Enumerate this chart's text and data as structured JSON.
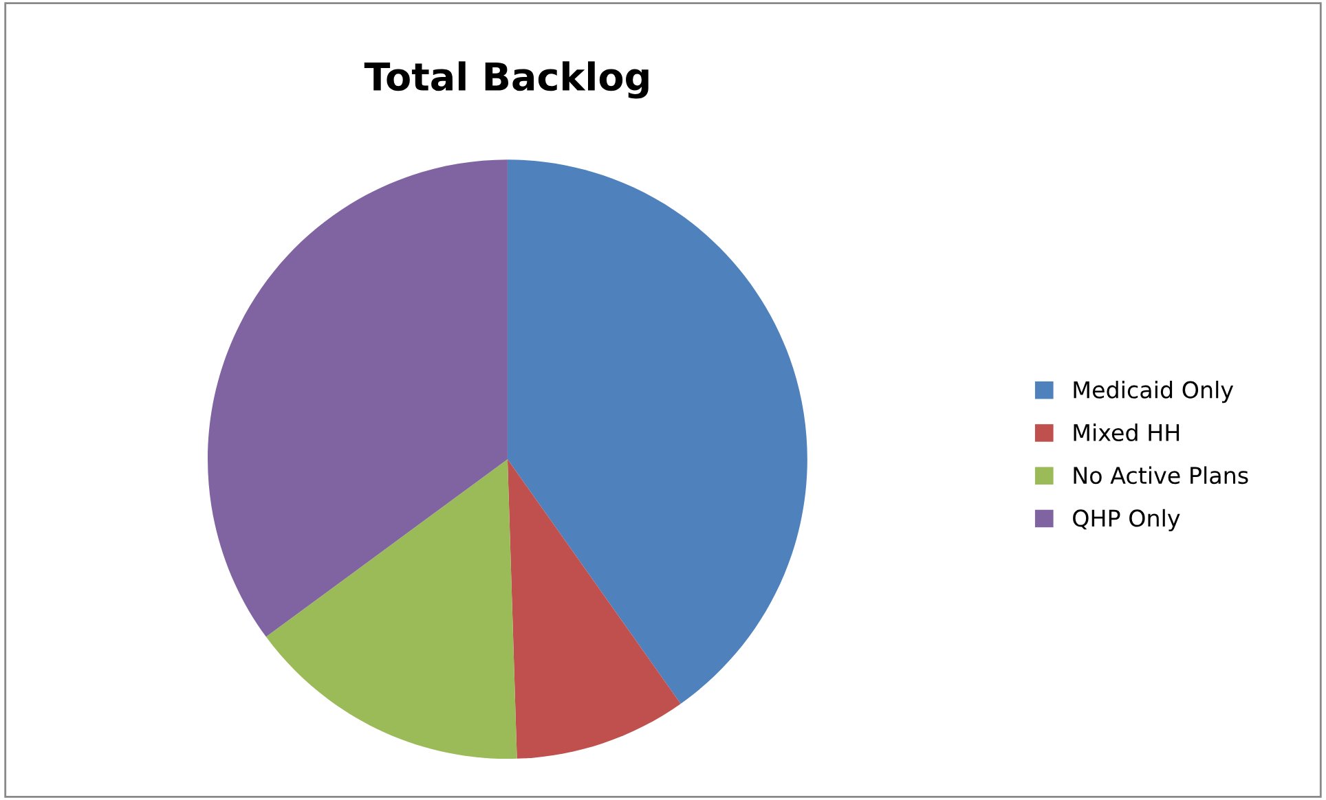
{
  "chart_data": {
    "type": "pie",
    "title": "Total Backlog",
    "categories": [
      "Medicaid Only",
      "Mixed HH",
      "No Active Plans",
      "QHP Only"
    ],
    "values": [
      40.2,
      9.3,
      15.4,
      35.1
    ],
    "colors": [
      "#4f81bd",
      "#c0504d",
      "#9bbb59",
      "#8064a2"
    ],
    "legend": "right"
  }
}
